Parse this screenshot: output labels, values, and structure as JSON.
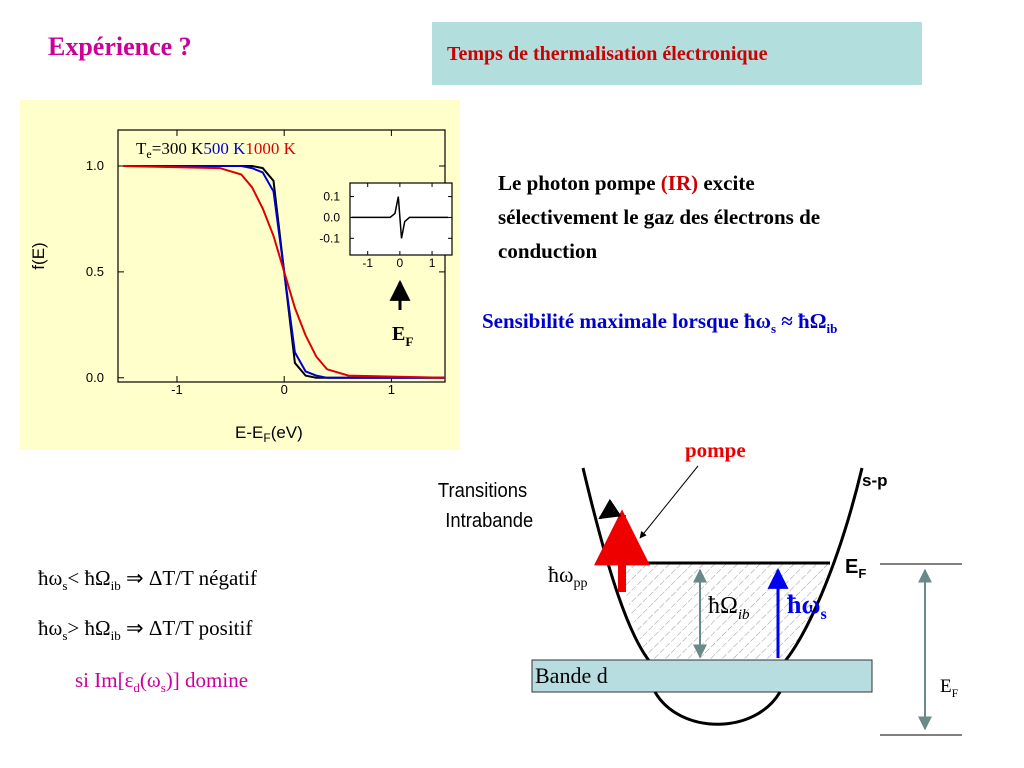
{
  "title": "Expérience ?",
  "header_box": "Temps de thermalisation électronique",
  "chart_data": [
    {
      "type": "line",
      "legend_title": {
        "text": "T",
        "sub": "e",
        "suffix": "="
      },
      "ylabel": "f(E)",
      "xlabel": {
        "text": "E-E",
        "sub": "F",
        "suffix": "(eV)"
      },
      "x": [
        -1.5,
        -0.6,
        -0.4,
        -0.3,
        -0.2,
        -0.1,
        0,
        0.1,
        0.2,
        0.3,
        0.4,
        0.6,
        1.5
      ],
      "series": [
        {
          "name": "300 K",
          "color": "#000000",
          "values": [
            1,
            1,
            1,
            1,
            0.99,
            0.93,
            0.5,
            0.07,
            0.01,
            0,
            0,
            0,
            0
          ]
        },
        {
          "name": "500 K",
          "color": "#0000cc",
          "values": [
            1,
            1,
            1,
            0.99,
            0.97,
            0.88,
            0.5,
            0.12,
            0.03,
            0.01,
            0,
            0,
            0
          ]
        },
        {
          "name": "1000 K",
          "color": "#dd0000",
          "values": [
            1,
            0.99,
            0.96,
            0.9,
            0.8,
            0.67,
            0.5,
            0.33,
            0.2,
            0.1,
            0.04,
            0.01,
            0
          ]
        }
      ],
      "xlim": [
        -1.55,
        1.5
      ],
      "ylim": [
        -0.02,
        1.17
      ],
      "xticks": [
        -1,
        0,
        1
      ],
      "yticks": [
        {
          "value": 0,
          "label": "0.0"
        },
        0.5,
        {
          "value": 1,
          "label": "1.0"
        }
      ]
    },
    {
      "type": "line",
      "x": [
        -1.5,
        -0.3,
        -0.15,
        -0.05,
        0,
        0.05,
        0.15,
        0.3,
        1.5
      ],
      "series": [
        {
          "color": "#000000",
          "values": [
            0,
            0,
            0.02,
            0.1,
            0,
            -0.1,
            -0.02,
            0,
            0
          ]
        }
      ],
      "xlim": [
        -1.55,
        1.62
      ],
      "ylim": [
        -0.18,
        0.165
      ],
      "xticks": [
        -1,
        0,
        1
      ],
      "yticks": [
        -0.1,
        {
          "value": 0,
          "label": "0.0"
        },
        0.1
      ]
    }
  ],
  "ef_label": {
    "text": "E",
    "sub": "F"
  },
  "paragraph": {
    "a": "Le photon pompe ",
    "ir": "(IR)",
    "b": " excite",
    "line2": "sélectivement le gaz des électrons de",
    "line3": "conduction"
  },
  "sensibilite": {
    "a": "Sensibilité maximale lorsque ħω",
    "s": "s",
    "b": " ≈  ħΩ",
    "ib": "ib"
  },
  "conditions": [
    {
      "a": "ħω",
      "s": "s",
      "b": "< ħΩ",
      "ib": "ib",
      "c": "  ⇒  ΔT/T négatif"
    },
    {
      "a": "ħω",
      "s": "s",
      "b": "> ħΩ",
      "ib": "ib",
      "c": "  ⇒  ΔT/T positif"
    }
  ],
  "condition_note": {
    "a": "si Im[ε",
    "d": "d",
    "b": "(ω",
    "s": "s",
    "c": ")] domine"
  },
  "diagram": {
    "pompe": "pompe",
    "transitions": "Transitions",
    "intrabande": "Intrabande",
    "sp": "s-p",
    "omega_pp": {
      "text": "ħω",
      "sub": "pp"
    },
    "ef": {
      "text": "E",
      "sub": "F"
    },
    "omega_ib": {
      "text": "ħΩ",
      "sub": "ib"
    },
    "omega_s": {
      "text": "ħω",
      "sub": "s"
    },
    "bande_d": "Bande d",
    "ef_depth": {
      "text": "E",
      "sub": "F"
    }
  }
}
